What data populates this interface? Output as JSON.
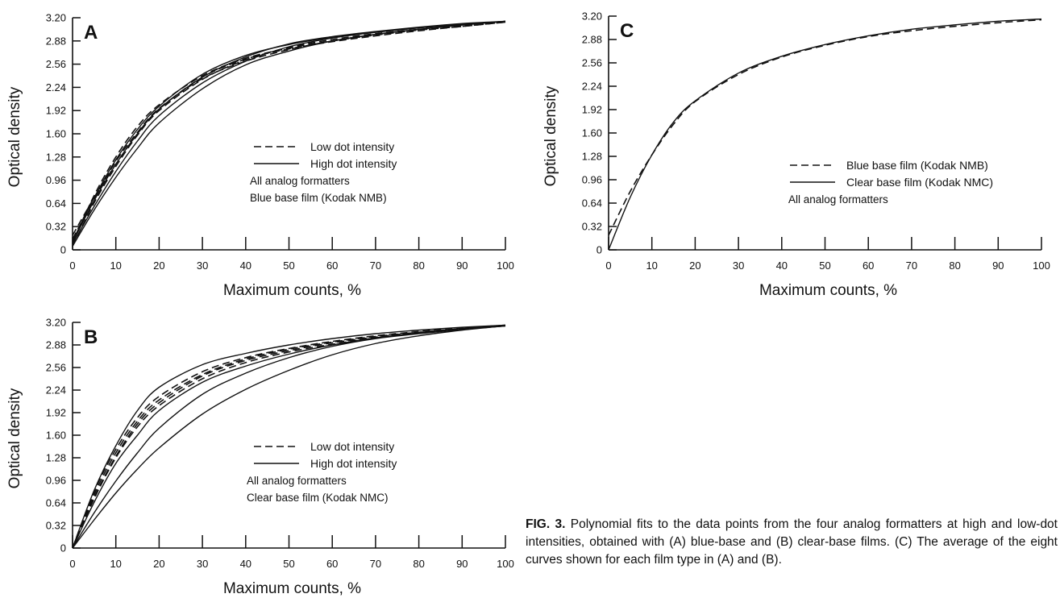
{
  "caption": {
    "label": "FIG. 3.",
    "text": "Polynomial fits to the data points from the four analog formatters at high and low-dot intensities, obtained with (A) blue-base and (B) clear-base films. (C) The average of the eight curves shown for each film type in (A) and (B)."
  },
  "chart_data": [
    {
      "type": "line",
      "panel_label": "A",
      "xlabel": "Maximum counts, %",
      "ylabel": "Optical density",
      "xlim": [
        0,
        100
      ],
      "ylim": [
        0,
        3.2
      ],
      "x_ticks": [
        "0",
        "10",
        "20",
        "30",
        "40",
        "50",
        "60",
        "70",
        "80",
        "90",
        "100"
      ],
      "y_ticks": [
        "0",
        "0.32",
        "0.64",
        "0.96",
        "1.28",
        "1.60",
        "1.92",
        "2.24",
        "2.56",
        "2.88",
        "3.20"
      ],
      "legend": {
        "placement": "center-right",
        "entries": [
          {
            "label": "Low dot intensity",
            "style": "dashed"
          },
          {
            "label": "High dot intensity",
            "style": "solid"
          }
        ],
        "notes": [
          "All analog formatters",
          "Blue base film (Kodak NMB)"
        ]
      },
      "x": [
        0,
        5,
        10,
        15,
        20,
        30,
        40,
        50,
        60,
        70,
        80,
        90,
        100
      ],
      "series": [
        {
          "style": "dashed",
          "values": [
            0.1,
            0.75,
            1.28,
            1.7,
            2.0,
            2.4,
            2.64,
            2.78,
            2.88,
            2.96,
            3.03,
            3.08,
            3.14
          ]
        },
        {
          "style": "dashed",
          "values": [
            0.15,
            0.7,
            1.22,
            1.62,
            1.95,
            2.36,
            2.6,
            2.76,
            2.88,
            2.97,
            3.04,
            3.1,
            3.15
          ]
        },
        {
          "style": "dashed",
          "values": [
            0.05,
            0.65,
            1.15,
            1.58,
            1.92,
            2.35,
            2.62,
            2.79,
            2.9,
            2.98,
            3.04,
            3.09,
            3.15
          ]
        },
        {
          "style": "dashed",
          "values": [
            0.2,
            0.72,
            1.18,
            1.6,
            1.94,
            2.38,
            2.63,
            2.77,
            2.87,
            2.95,
            3.02,
            3.08,
            3.14
          ]
        },
        {
          "style": "solid",
          "values": [
            0.05,
            0.55,
            1.0,
            1.4,
            1.75,
            2.22,
            2.55,
            2.74,
            2.88,
            2.97,
            3.04,
            3.1,
            3.15
          ]
        },
        {
          "style": "solid",
          "values": [
            0.08,
            0.6,
            1.08,
            1.5,
            1.85,
            2.3,
            2.6,
            2.8,
            2.92,
            3.0,
            3.06,
            3.11,
            3.15
          ]
        },
        {
          "style": "solid",
          "values": [
            0.1,
            0.68,
            1.18,
            1.6,
            1.94,
            2.38,
            2.66,
            2.84,
            2.94,
            3.01,
            3.07,
            3.12,
            3.15
          ]
        },
        {
          "style": "solid",
          "values": [
            0.12,
            0.72,
            1.24,
            1.66,
            1.98,
            2.42,
            2.68,
            2.83,
            2.93,
            3.0,
            3.06,
            3.11,
            3.15
          ]
        }
      ]
    },
    {
      "type": "line",
      "panel_label": "B",
      "xlabel": "Maximum counts, %",
      "ylabel": "Optical density",
      "xlim": [
        0,
        100
      ],
      "ylim": [
        0,
        3.2
      ],
      "x_ticks": [
        "0",
        "10",
        "20",
        "30",
        "40",
        "50",
        "60",
        "70",
        "80",
        "90",
        "100"
      ],
      "y_ticks": [
        "0",
        "0.32",
        "0.64",
        "0.96",
        "1.28",
        "1.60",
        "1.92",
        "2.24",
        "2.56",
        "2.88",
        "3.20"
      ],
      "legend": {
        "placement": "center-right",
        "entries": [
          {
            "label": "Low dot intensity",
            "style": "dashed"
          },
          {
            "label": "High dot intensity",
            "style": "solid"
          }
        ],
        "notes": [
          "All analog formatters",
          "Clear base film (Kodak NMC)"
        ]
      },
      "x": [
        0,
        5,
        10,
        15,
        20,
        30,
        40,
        50,
        60,
        70,
        80,
        90,
        100
      ],
      "series": [
        {
          "style": "dashed",
          "values": [
            0.0,
            0.8,
            1.4,
            1.85,
            2.15,
            2.5,
            2.7,
            2.83,
            2.93,
            3.01,
            3.07,
            3.12,
            3.16
          ]
        },
        {
          "style": "dashed",
          "values": [
            0.0,
            0.76,
            1.35,
            1.8,
            2.1,
            2.46,
            2.68,
            2.82,
            2.92,
            3.0,
            3.06,
            3.11,
            3.16
          ]
        },
        {
          "style": "dashed",
          "values": [
            0.0,
            0.72,
            1.3,
            1.76,
            2.06,
            2.44,
            2.66,
            2.8,
            2.91,
            2.99,
            3.06,
            3.11,
            3.16
          ]
        },
        {
          "style": "dashed",
          "values": [
            0.0,
            0.7,
            1.28,
            1.72,
            2.02,
            2.4,
            2.63,
            2.78,
            2.89,
            2.98,
            3.05,
            3.11,
            3.16
          ]
        },
        {
          "style": "solid",
          "values": [
            0.0,
            0.82,
            1.45,
            1.95,
            2.28,
            2.6,
            2.76,
            2.88,
            2.97,
            3.04,
            3.09,
            3.13,
            3.16
          ]
        },
        {
          "style": "solid",
          "values": [
            0.0,
            0.65,
            1.2,
            1.6,
            1.95,
            2.35,
            2.58,
            2.75,
            2.88,
            2.98,
            3.05,
            3.1,
            3.15
          ]
        },
        {
          "style": "solid",
          "values": [
            0.0,
            0.5,
            0.95,
            1.35,
            1.7,
            2.18,
            2.48,
            2.7,
            2.86,
            2.97,
            3.04,
            3.1,
            3.15
          ]
        },
        {
          "style": "solid",
          "values": [
            0.0,
            0.4,
            0.78,
            1.12,
            1.42,
            1.9,
            2.25,
            2.52,
            2.74,
            2.9,
            3.01,
            3.09,
            3.15
          ]
        }
      ]
    },
    {
      "type": "line",
      "panel_label": "C",
      "xlabel": "Maximum counts, %",
      "ylabel": "Optical density",
      "xlim": [
        0,
        100
      ],
      "ylim": [
        0,
        3.2
      ],
      "x_ticks": [
        "0",
        "10",
        "20",
        "30",
        "40",
        "50",
        "60",
        "70",
        "80",
        "90",
        "100"
      ],
      "y_ticks": [
        "0",
        "0.32",
        "0.64",
        "0.96",
        "1.28",
        "1.60",
        "1.92",
        "2.24",
        "2.56",
        "2.88",
        "3.20"
      ],
      "legend": {
        "placement": "center-right",
        "entries": [
          {
            "label": "Blue base film (Kodak NMB)",
            "style": "dashed"
          },
          {
            "label": "Clear base film (Kodak NMC)",
            "style": "solid"
          }
        ],
        "notes": [
          "All analog formatters"
        ]
      },
      "x": [
        0,
        5,
        10,
        15,
        20,
        30,
        40,
        50,
        60,
        70,
        80,
        90,
        100
      ],
      "series": [
        {
          "style": "dashed",
          "values": [
            0.2,
            0.8,
            1.3,
            1.72,
            2.03,
            2.4,
            2.64,
            2.8,
            2.92,
            3.0,
            3.06,
            3.11,
            3.15
          ]
        },
        {
          "style": "solid",
          "values": [
            0.0,
            0.72,
            1.3,
            1.75,
            2.04,
            2.42,
            2.65,
            2.81,
            2.93,
            3.02,
            3.08,
            3.13,
            3.16
          ]
        }
      ]
    }
  ]
}
